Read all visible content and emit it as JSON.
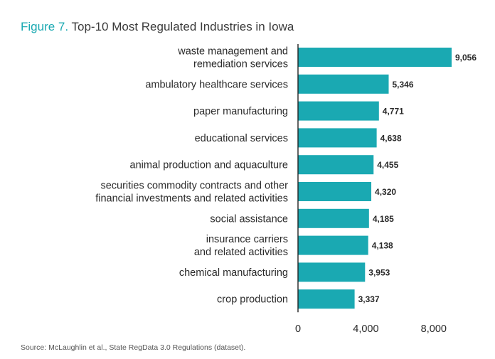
{
  "figure": {
    "label": "Figure 7.",
    "title": "Top-10 Most Regulated Industries in Iowa",
    "source": "Source: McLaughlin et al., State RegData 3.0 Regulations (dataset)."
  },
  "colors": {
    "bar": "#1aa9b2",
    "title_accent": "#1aa9b2",
    "axis": "#222222"
  },
  "chart_data": {
    "type": "bar",
    "orientation": "horizontal",
    "title": "Top-10 Most Regulated Industries in Iowa",
    "categories": [
      [
        "waste management and",
        "remediation services"
      ],
      [
        "ambulatory healthcare services"
      ],
      [
        "paper manufacturing"
      ],
      [
        "educational services"
      ],
      [
        "animal production and aquaculture"
      ],
      [
        "securities commodity contracts and other",
        "financial investments and related activities"
      ],
      [
        "social assistance"
      ],
      [
        "insurance carriers",
        "and related activities"
      ],
      [
        "chemical manufacturing"
      ],
      [
        "crop production"
      ]
    ],
    "values": [
      9056,
      5346,
      4771,
      4638,
      4455,
      4320,
      4185,
      4138,
      3953,
      3337
    ],
    "value_labels": [
      "9,056",
      "5,346",
      "4,771",
      "4,638",
      "4,455",
      "4,320",
      "4,185",
      "4,138",
      "3,953",
      "3,337"
    ],
    "xticks": [
      0,
      4000,
      8000
    ],
    "xtick_labels": [
      "0",
      "4,000",
      "8,000"
    ],
    "xlim": [
      0,
      9056
    ],
    "grid": false,
    "legend": "none"
  }
}
